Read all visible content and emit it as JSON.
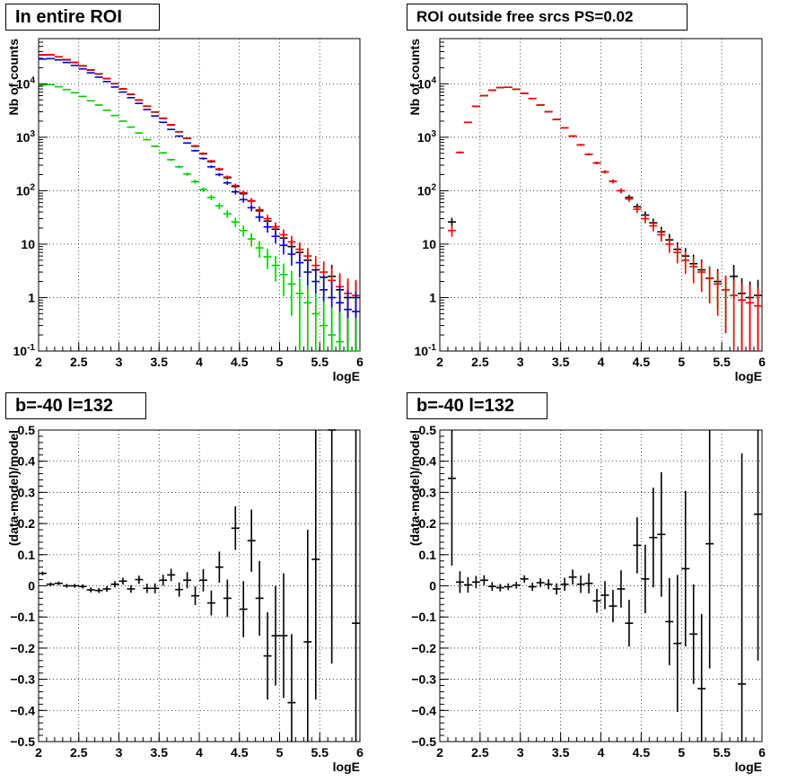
{
  "chart_data": [
    {
      "type": "scatter",
      "title": "In entire ROI",
      "xlabel": "logE",
      "ylabel": "Nb of counts",
      "xlim": [
        2,
        6
      ],
      "ylim": [
        0.1,
        70000
      ],
      "yscale": "log",
      "grid": true,
      "x_ticks": [
        "2",
        "2.5",
        "3",
        "3.5",
        "4",
        "4.5",
        "5",
        "5.5",
        "6"
      ],
      "y_ticks": [
        "10^-1",
        "1",
        "10",
        "10^2",
        "10^3",
        "10^4"
      ],
      "x": [
        2.05,
        2.15,
        2.25,
        2.35,
        2.45,
        2.55,
        2.65,
        2.75,
        2.85,
        2.95,
        3.05,
        3.15,
        3.25,
        3.35,
        3.45,
        3.55,
        3.65,
        3.75,
        3.85,
        3.95,
        4.05,
        4.15,
        4.25,
        4.35,
        4.45,
        4.55,
        4.65,
        4.75,
        4.85,
        4.95,
        5.05,
        5.15,
        5.25,
        5.35,
        5.45,
        5.55,
        5.65,
        5.75,
        5.85,
        5.95
      ],
      "series": [
        {
          "color": "#000000",
          "values": [
            34500,
            34800,
            32000,
            28000,
            25000,
            21500,
            18000,
            15200,
            12500,
            10000,
            8000,
            6300,
            4950,
            3800,
            2950,
            2250,
            1700,
            1260,
            950,
            680,
            490,
            350,
            250,
            175,
            120,
            88,
            64,
            42,
            27,
            19,
            13,
            9,
            7,
            5,
            3.3,
            2.4,
            2.5,
            1.4,
            1.0,
            1.0
          ]
        },
        {
          "color": "#ff0000",
          "values": [
            35000,
            35000,
            32000,
            28500,
            25300,
            21800,
            18200,
            15400,
            12600,
            10100,
            8100,
            6400,
            5000,
            3830,
            2980,
            2280,
            1720,
            1270,
            960,
            690,
            500,
            360,
            255,
            180,
            125,
            92,
            65,
            44,
            30,
            21,
            15,
            11,
            8,
            6,
            4,
            3,
            2.1,
            1.6,
            1.2,
            1.1
          ]
        },
        {
          "color": "#0000cc",
          "values": [
            29000,
            29500,
            28000,
            25000,
            22000,
            19000,
            16000,
            13300,
            11000,
            8700,
            7000,
            5500,
            4300,
            3300,
            2500,
            1900,
            1400,
            1050,
            780,
            560,
            400,
            280,
            200,
            140,
            95,
            68,
            48,
            32,
            21,
            14,
            9.5,
            6.5,
            4.5,
            3,
            2,
            1.4,
            1.0,
            0.8,
            0.6,
            0.55
          ]
        },
        {
          "color": "#00cc00",
          "values": [
            9500,
            9600,
            8800,
            7800,
            6800,
            5800,
            4800,
            4000,
            3200,
            2550,
            2000,
            1550,
            1200,
            900,
            680,
            510,
            380,
            280,
            205,
            148,
            105,
            75,
            52,
            37,
            26,
            18,
            12.5,
            8.5,
            5.8,
            4.0,
            2.7,
            1.8,
            1.2,
            0.8,
            0.5,
            0.3,
            0.2,
            0.15,
            0.1,
            0.1
          ]
        }
      ]
    },
    {
      "type": "scatter",
      "title": "ROI outside free srcs PS=0.02",
      "xlabel": "logE",
      "ylabel": "Nb of counts",
      "xlim": [
        2,
        6
      ],
      "ylim": [
        0.1,
        70000
      ],
      "yscale": "log",
      "grid": true,
      "x_ticks": [
        "2",
        "2.5",
        "3",
        "3.5",
        "4",
        "4.5",
        "5",
        "5.5",
        "6"
      ],
      "y_ticks": [
        "10^-1",
        "1",
        "10",
        "10^2",
        "10^3",
        "10^4"
      ],
      "x": [
        2.15,
        2.25,
        2.35,
        2.45,
        2.55,
        2.65,
        2.75,
        2.85,
        2.95,
        3.05,
        3.15,
        3.25,
        3.35,
        3.45,
        3.55,
        3.65,
        3.75,
        3.85,
        3.95,
        4.05,
        4.15,
        4.25,
        4.35,
        4.45,
        4.55,
        4.65,
        4.75,
        4.85,
        4.95,
        5.05,
        5.15,
        5.25,
        5.35,
        5.45,
        5.55,
        5.65,
        5.75,
        5.85,
        5.95
      ],
      "series": [
        {
          "color": "#000000",
          "values": [
            26,
            520,
            1900,
            3800,
            6000,
            7600,
            8500,
            8600,
            7900,
            6600,
            5300,
            4000,
            3000,
            2150,
            1500,
            1050,
            720,
            480,
            330,
            225,
            150,
            100,
            75,
            50,
            35,
            25,
            17,
            12,
            8,
            6,
            4.3,
            3.3,
            2.3,
            2,
            1.4,
            2.5,
            1.2,
            1.0,
            1.1
          ]
        },
        {
          "color": "#ff0000",
          "values": [
            18,
            520,
            1900,
            3800,
            6000,
            7600,
            8500,
            8600,
            7900,
            6600,
            5300,
            4000,
            3000,
            2150,
            1500,
            1050,
            720,
            480,
            330,
            225,
            150,
            100,
            70,
            45,
            30,
            22,
            15,
            10,
            7,
            5,
            3.8,
            3.0,
            2.3,
            1.8,
            1.4,
            1.1,
            0.9,
            0.8,
            0.7
          ]
        }
      ]
    },
    {
      "type": "scatter",
      "title": "b=-40 l=132",
      "xlabel": "logE",
      "ylabel": "(data-model)/model",
      "xlim": [
        2,
        6
      ],
      "ylim": [
        -0.5,
        0.5
      ],
      "grid": true,
      "x_ticks": [
        "2",
        "2.5",
        "3",
        "3.5",
        "4",
        "4.5",
        "5",
        "5.5",
        "6"
      ],
      "y_ticks": [
        "-0.5",
        "-0.4",
        "-0.3",
        "-0.2",
        "-0.1",
        "0",
        "0.1",
        "0.2",
        "0.3",
        "0.4",
        "0.5"
      ],
      "x": [
        2.05,
        2.15,
        2.25,
        2.35,
        2.45,
        2.55,
        2.65,
        2.75,
        2.85,
        2.95,
        3.05,
        3.15,
        3.25,
        3.35,
        3.45,
        3.55,
        3.65,
        3.75,
        3.85,
        3.95,
        4.05,
        4.15,
        4.25,
        4.35,
        4.45,
        4.55,
        4.65,
        4.75,
        4.85,
        4.95,
        5.05,
        5.15,
        5.35,
        5.45,
        5.65,
        5.95
      ],
      "series": [
        {
          "color": "#000000",
          "values": [
            0.04,
            0.005,
            0.008,
            0.0,
            0.0,
            -0.002,
            -0.013,
            -0.015,
            -0.01,
            0.005,
            0.015,
            -0.01,
            0.02,
            -0.008,
            -0.008,
            0.018,
            0.035,
            -0.012,
            0.018,
            -0.032,
            0.018,
            -0.055,
            0.06,
            -0.04,
            0.185,
            -0.075,
            0.145,
            -0.04,
            -0.225,
            -0.16,
            -0.16,
            -0.375,
            -0.18,
            0.085,
            0.5,
            -0.12
          ],
          "errors": [
            0.006,
            0.006,
            0.006,
            0.006,
            0.006,
            0.007,
            0.008,
            0.008,
            0.009,
            0.01,
            0.011,
            0.012,
            0.013,
            0.015,
            0.016,
            0.018,
            0.02,
            0.023,
            0.026,
            0.03,
            0.036,
            0.04,
            0.05,
            0.06,
            0.07,
            0.09,
            0.1,
            0.12,
            0.14,
            0.16,
            0.2,
            0.22,
            0.36,
            0.45,
            0.75,
            0.7
          ]
        }
      ]
    },
    {
      "type": "scatter",
      "title": "b=-40 l=132",
      "xlabel": "logE",
      "ylabel": "(data-model)/model",
      "xlim": [
        2,
        6
      ],
      "ylim": [
        -0.5,
        0.5
      ],
      "grid": true,
      "x_ticks": [
        "2",
        "2.5",
        "3",
        "3.5",
        "4",
        "4.5",
        "5",
        "5.5",
        "6"
      ],
      "y_ticks": [
        "-0.5",
        "-0.4",
        "-0.3",
        "-0.2",
        "-0.1",
        "0",
        "0.1",
        "0.2",
        "0.3",
        "0.4",
        "0.5"
      ],
      "x": [
        2.15,
        2.25,
        2.35,
        2.45,
        2.55,
        2.65,
        2.75,
        2.85,
        2.95,
        3.05,
        3.15,
        3.25,
        3.35,
        3.45,
        3.55,
        3.65,
        3.75,
        3.85,
        3.95,
        4.05,
        4.15,
        4.25,
        4.35,
        4.45,
        4.55,
        4.65,
        4.75,
        4.85,
        4.95,
        5.05,
        5.15,
        5.25,
        5.35,
        5.75,
        5.95
      ],
      "series": [
        {
          "color": "#000000",
          "values": [
            0.345,
            0.012,
            0.003,
            0.012,
            0.018,
            -0.002,
            -0.006,
            -0.003,
            0.002,
            0.022,
            -0.003,
            0.01,
            0.005,
            -0.01,
            0.005,
            0.028,
            0.005,
            0.008,
            -0.048,
            -0.03,
            -0.065,
            -0.01,
            -0.12,
            0.13,
            0.022,
            0.155,
            0.165,
            -0.115,
            -0.185,
            0.055,
            -0.155,
            -0.33,
            0.135,
            -0.315,
            0.23
          ],
          "errors": [
            0.28,
            0.035,
            0.025,
            0.02,
            0.016,
            0.014,
            0.012,
            0.011,
            0.011,
            0.012,
            0.013,
            0.014,
            0.016,
            0.018,
            0.021,
            0.024,
            0.028,
            0.032,
            0.038,
            0.045,
            0.052,
            0.06,
            0.075,
            0.09,
            0.11,
            0.16,
            0.2,
            0.14,
            0.22,
            0.25,
            0.16,
            0.24,
            0.4,
            0.74,
            0.47
          ]
        }
      ]
    }
  ]
}
